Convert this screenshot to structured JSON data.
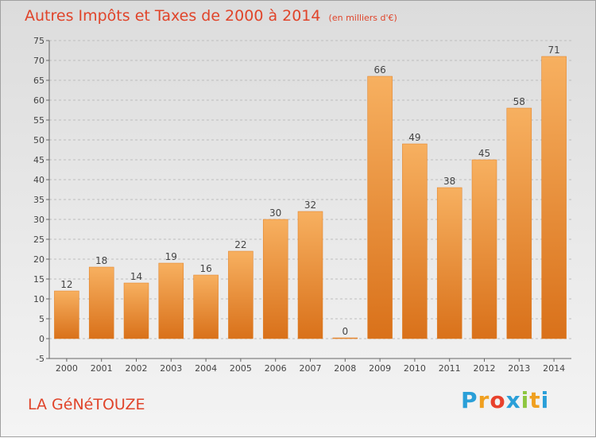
{
  "title": "Autres Impôts et Taxes de 2000 à 2014",
  "subtitle": "(en milliers d'€)",
  "commune": "LA GéNéTOUZE",
  "logo": {
    "letters": [
      "P",
      "r",
      "o",
      "x",
      "i",
      "t",
      "i"
    ],
    "colors": [
      "#2a9fd8",
      "#f0a020",
      "#e8412c",
      "#2a9fd8",
      "#8dc63f",
      "#f0a020",
      "#2a9fd8"
    ]
  },
  "colors": {
    "bar": "#f08a2a",
    "bar_light": "#f7b060",
    "title": "#e0442a"
  },
  "chart_data": {
    "type": "bar",
    "title": "Autres Impôts et Taxes de 2000 à 2014",
    "subtitle": "(en milliers d'€)",
    "categories": [
      "2000",
      "2001",
      "2002",
      "2003",
      "2004",
      "2005",
      "2006",
      "2007",
      "2008",
      "2009",
      "2010",
      "2011",
      "2012",
      "2013",
      "2014"
    ],
    "values": [
      12,
      18,
      14,
      19,
      16,
      22,
      30,
      32,
      0,
      66,
      49,
      38,
      45,
      58,
      71
    ],
    "ylim": [
      -5,
      75
    ],
    "yticks": [
      -5,
      0,
      5,
      10,
      15,
      20,
      25,
      30,
      35,
      40,
      45,
      50,
      55,
      60,
      65,
      70,
      75
    ],
    "grid": true
  }
}
